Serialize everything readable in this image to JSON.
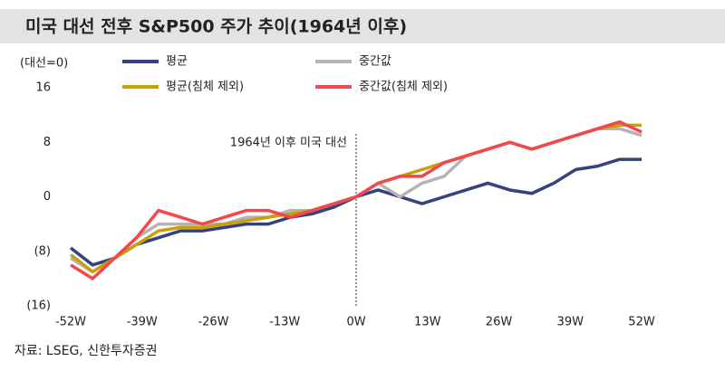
{
  "chart_data": {
    "type": "line",
    "title": "미국 대선 전후 S&P500 주가 추이(1964년 이후)",
    "y_label": "(대선=0)",
    "annotation": "1964년 이후 미국 대선",
    "source": "자료: LSEG, 신한투자증권",
    "x": [
      -52,
      -48,
      -44,
      -40,
      -36,
      -32,
      -28,
      -24,
      -20,
      -16,
      -12,
      -8,
      -4,
      0,
      4,
      8,
      12,
      16,
      20,
      24,
      28,
      32,
      36,
      40,
      44,
      48,
      52
    ],
    "series": [
      {
        "name": "평균",
        "color": "#34427e",
        "values": [
          -7.5,
          -10,
          -9,
          -7,
          -6,
          -5,
          -5,
          -4.5,
          -4,
          -4,
          -3,
          -2.5,
          -1.5,
          0,
          1,
          0,
          -1,
          0,
          1,
          2,
          1,
          0.5,
          2,
          4,
          4.5,
          5.5,
          5.5
        ]
      },
      {
        "name": "중간값",
        "color": "#b4b4b4",
        "values": [
          -9,
          -11,
          -9,
          -6,
          -4,
          -4,
          -4,
          -4,
          -3,
          -3,
          -2,
          -2,
          -1,
          0,
          2,
          0,
          2,
          3,
          6,
          7,
          8,
          7,
          8,
          9,
          10,
          10,
          9
        ]
      },
      {
        "name": "평균(침체 제외)",
        "color": "#c9a106",
        "values": [
          -8.5,
          -11,
          -9,
          -7,
          -5,
          -4.5,
          -4.5,
          -4,
          -3.5,
          -3,
          -2.5,
          -2,
          -1,
          0,
          2,
          3,
          4,
          5,
          6,
          7,
          8,
          7,
          8,
          9,
          10,
          10.5,
          10.5
        ]
      },
      {
        "name": "중간값(침체 제외)",
        "color": "#f0484e",
        "values": [
          -10,
          -12,
          -9,
          -6,
          -2,
          -3,
          -4,
          -3,
          -2,
          -2,
          -3,
          -2,
          -1,
          0,
          2,
          3,
          3,
          5,
          6,
          7,
          8,
          7,
          8,
          9,
          10,
          11,
          9.5
        ]
      }
    ],
    "xlim": [
      -52,
      52
    ],
    "xticks": [
      {
        "value": -52,
        "label": "-52W"
      },
      {
        "value": -39,
        "label": "-39W"
      },
      {
        "value": -26,
        "label": "-26W"
      },
      {
        "value": -13,
        "label": "-13W"
      },
      {
        "value": 0,
        "label": "0W"
      },
      {
        "value": 13,
        "label": "13W"
      },
      {
        "value": 26,
        "label": "26W"
      },
      {
        "value": 39,
        "label": "39W"
      },
      {
        "value": 52,
        "label": "52W"
      }
    ],
    "ylim": [
      -16,
      16
    ],
    "yticks": [
      16,
      8,
      0,
      {
        "value": -8,
        "label": "(8)"
      },
      {
        "value": -16,
        "label": "(16)"
      }
    ]
  }
}
